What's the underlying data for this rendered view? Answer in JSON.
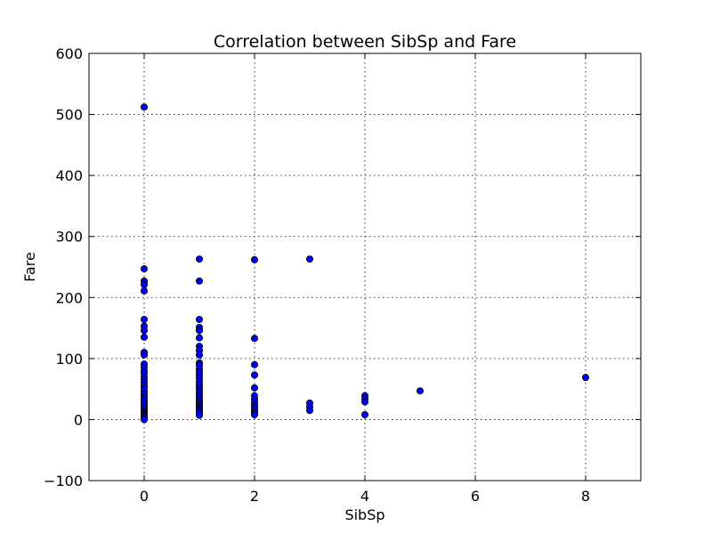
{
  "chart_data": {
    "type": "scatter",
    "title": "Correlation between SibSp and Fare",
    "xlabel": "SibSp",
    "ylabel": "Fare",
    "xlim": [
      -1,
      9
    ],
    "ylim": [
      -100,
      600
    ],
    "xticks": [
      "0",
      "2",
      "4",
      "6",
      "8"
    ],
    "xtick_values": [
      0,
      2,
      4,
      6,
      8
    ],
    "yticks": [
      "−100",
      "0",
      "100",
      "200",
      "300",
      "400",
      "500",
      "600"
    ],
    "ytick_values": [
      -100,
      0,
      100,
      200,
      300,
      400,
      500,
      600
    ],
    "grid": true,
    "point_color": "#0000ff",
    "edge_color": "#000000",
    "points": [
      {
        "x": 0,
        "y": 512
      },
      {
        "x": 0,
        "y": 247
      },
      {
        "x": 0,
        "y": 227
      },
      {
        "x": 0,
        "y": 221
      },
      {
        "x": 0,
        "y": 211
      },
      {
        "x": 0,
        "y": 164
      },
      {
        "x": 0,
        "y": 153
      },
      {
        "x": 0,
        "y": 146
      },
      {
        "x": 0,
        "y": 135
      },
      {
        "x": 0,
        "y": 110
      },
      {
        "x": 0,
        "y": 106
      },
      {
        "x": 0,
        "y": 91
      },
      {
        "x": 0,
        "y": 86
      },
      {
        "x": 0,
        "y": 80
      },
      {
        "x": 0,
        "y": 77
      },
      {
        "x": 0,
        "y": 71
      },
      {
        "x": 0,
        "y": 66
      },
      {
        "x": 0,
        "y": 61
      },
      {
        "x": 0,
        "y": 56
      },
      {
        "x": 0,
        "y": 52
      },
      {
        "x": 0,
        "y": 47
      },
      {
        "x": 0,
        "y": 42
      },
      {
        "x": 0,
        "y": 38
      },
      {
        "x": 0,
        "y": 34
      },
      {
        "x": 0,
        "y": 30
      },
      {
        "x": 0,
        "y": 27
      },
      {
        "x": 0,
        "y": 24
      },
      {
        "x": 0,
        "y": 21
      },
      {
        "x": 0,
        "y": 18
      },
      {
        "x": 0,
        "y": 15
      },
      {
        "x": 0,
        "y": 13
      },
      {
        "x": 0,
        "y": 11
      },
      {
        "x": 0,
        "y": 9
      },
      {
        "x": 0,
        "y": 8
      },
      {
        "x": 0,
        "y": 7
      },
      {
        "x": 0,
        "y": 5
      },
      {
        "x": 0,
        "y": 3
      },
      {
        "x": 0,
        "y": 0
      },
      {
        "x": 1,
        "y": 263
      },
      {
        "x": 1,
        "y": 227
      },
      {
        "x": 1,
        "y": 164
      },
      {
        "x": 1,
        "y": 151
      },
      {
        "x": 1,
        "y": 146
      },
      {
        "x": 1,
        "y": 134
      },
      {
        "x": 1,
        "y": 120
      },
      {
        "x": 1,
        "y": 113
      },
      {
        "x": 1,
        "y": 106
      },
      {
        "x": 1,
        "y": 93
      },
      {
        "x": 1,
        "y": 89
      },
      {
        "x": 1,
        "y": 83
      },
      {
        "x": 1,
        "y": 78
      },
      {
        "x": 1,
        "y": 73
      },
      {
        "x": 1,
        "y": 68
      },
      {
        "x": 1,
        "y": 62
      },
      {
        "x": 1,
        "y": 57
      },
      {
        "x": 1,
        "y": 53
      },
      {
        "x": 1,
        "y": 49
      },
      {
        "x": 1,
        "y": 44
      },
      {
        "x": 1,
        "y": 40
      },
      {
        "x": 1,
        "y": 36
      },
      {
        "x": 1,
        "y": 32
      },
      {
        "x": 1,
        "y": 29
      },
      {
        "x": 1,
        "y": 26
      },
      {
        "x": 1,
        "y": 23
      },
      {
        "x": 1,
        "y": 20
      },
      {
        "x": 1,
        "y": 17
      },
      {
        "x": 1,
        "y": 15
      },
      {
        "x": 1,
        "y": 13
      },
      {
        "x": 1,
        "y": 10
      },
      {
        "x": 1,
        "y": 7
      },
      {
        "x": 2,
        "y": 262
      },
      {
        "x": 2,
        "y": 133
      },
      {
        "x": 2,
        "y": 90
      },
      {
        "x": 2,
        "y": 73
      },
      {
        "x": 2,
        "y": 52
      },
      {
        "x": 2,
        "y": 39
      },
      {
        "x": 2,
        "y": 33
      },
      {
        "x": 2,
        "y": 27
      },
      {
        "x": 2,
        "y": 23
      },
      {
        "x": 2,
        "y": 19
      },
      {
        "x": 2,
        "y": 14
      },
      {
        "x": 2,
        "y": 11
      },
      {
        "x": 2,
        "y": 8
      },
      {
        "x": 3,
        "y": 263
      },
      {
        "x": 3,
        "y": 27
      },
      {
        "x": 3,
        "y": 21
      },
      {
        "x": 3,
        "y": 15
      },
      {
        "x": 4,
        "y": 39
      },
      {
        "x": 4,
        "y": 34
      },
      {
        "x": 4,
        "y": 29
      },
      {
        "x": 4,
        "y": 8
      },
      {
        "x": 5,
        "y": 47
      },
      {
        "x": 8,
        "y": 69
      }
    ]
  }
}
